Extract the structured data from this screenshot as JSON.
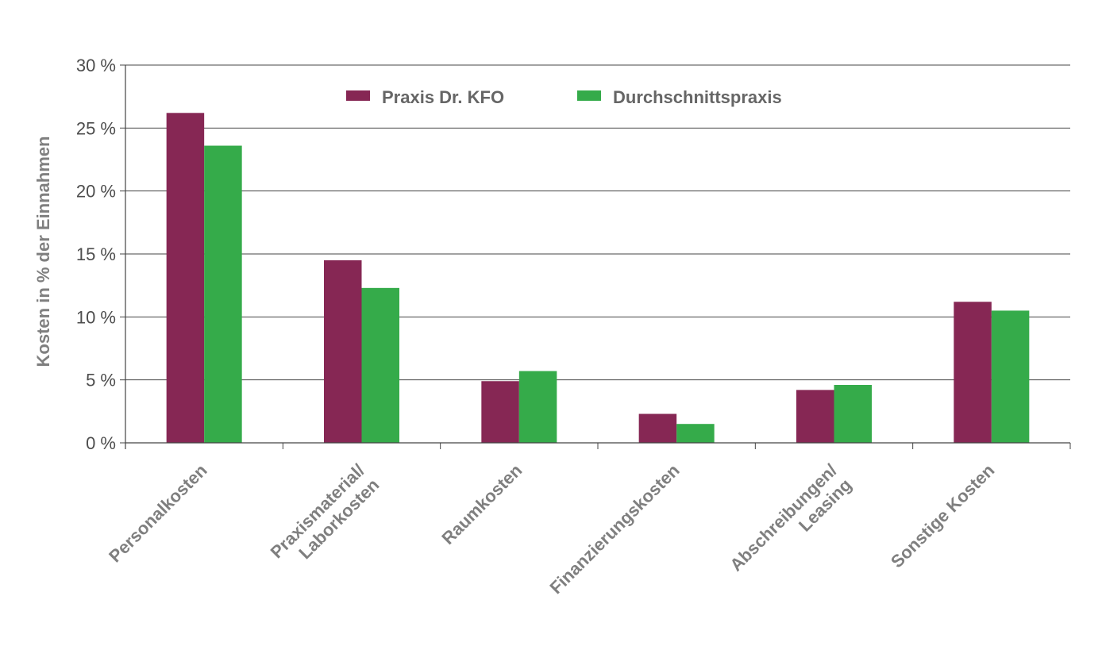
{
  "chart_data": {
    "type": "bar",
    "ylabel": "Kosten in % der Einnahmen",
    "xlabel": "",
    "ylim": [
      0,
      30
    ],
    "y_ticks": [
      0,
      5,
      10,
      15,
      20,
      25,
      30
    ],
    "y_tick_labels": [
      "0 %",
      "5 %",
      "10 %",
      "15 %",
      "20 %",
      "25 %",
      "30 %"
    ],
    "grid": true,
    "legend_position": "top-center",
    "categories": [
      [
        "Personalkosten"
      ],
      [
        "Praxismaterial/",
        "Laborkosten"
      ],
      [
        "Raumkosten"
      ],
      [
        "Finanzierungskosten"
      ],
      [
        "Abschreibungen/",
        "Leasing"
      ],
      [
        "Sonstige Kosten"
      ]
    ],
    "series": [
      {
        "name": "Praxis Dr. KFO",
        "color": "#862754",
        "values": [
          26.2,
          14.5,
          4.9,
          2.3,
          4.2,
          11.2
        ]
      },
      {
        "name": "Durchschnittspraxis",
        "color": "#35ab4a",
        "values": [
          23.6,
          12.3,
          5.7,
          1.5,
          4.6,
          10.5
        ]
      }
    ]
  }
}
